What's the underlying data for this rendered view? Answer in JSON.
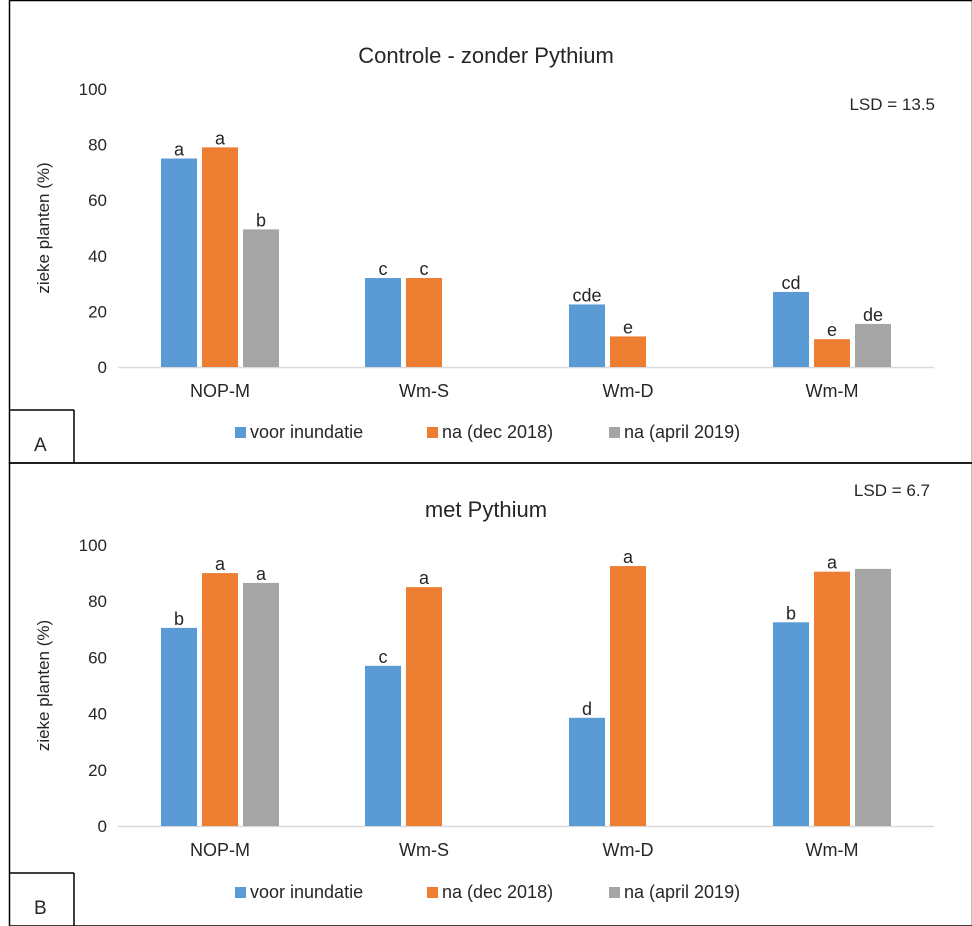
{
  "chart_data": [
    {
      "type": "bar",
      "panel": "A",
      "title": "Controle - zonder Pythium",
      "ylabel": "zieke planten (%)",
      "ylim": [
        0,
        100
      ],
      "yticks": [
        0,
        20,
        40,
        60,
        80,
        100
      ],
      "grid": false,
      "annotation": "LSD = 13.5",
      "legend_position": "bottom",
      "categories": [
        "NOP-M",
        "Wm-S",
        "Wm-D",
        "Wm-M"
      ],
      "series": [
        {
          "name": "voor inundatie",
          "color": "#5B9BD5",
          "values": [
            75,
            32,
            22.5,
            27
          ],
          "letters": [
            "a",
            "c",
            "cde",
            "cd"
          ]
        },
        {
          "name": "na (dec 2018)",
          "color": "#ED7D31",
          "values": [
            79,
            32,
            11,
            10
          ],
          "letters": [
            "a",
            "c",
            "e",
            "e"
          ]
        },
        {
          "name": "na (april 2019)",
          "color": "#A5A5A5",
          "values": [
            49.5,
            null,
            null,
            15.5
          ],
          "letters": [
            "b",
            "",
            "",
            "de"
          ]
        }
      ]
    },
    {
      "type": "bar",
      "panel": "B",
      "title": "met Pythium",
      "ylabel": "zieke planten (%)",
      "ylim": [
        0,
        100
      ],
      "yticks": [
        0,
        20,
        40,
        60,
        80,
        100
      ],
      "grid": false,
      "annotation": "LSD =  6.7",
      "legend_position": "bottom",
      "categories": [
        "NOP-M",
        "Wm-S",
        "Wm-D",
        "Wm-M"
      ],
      "series": [
        {
          "name": "voor inundatie",
          "color": "#5B9BD5",
          "values": [
            70.5,
            57,
            38.5,
            72.5
          ],
          "letters": [
            "b",
            "c",
            "d",
            "b"
          ]
        },
        {
          "name": "na (dec 2018)",
          "color": "#ED7D31",
          "values": [
            90,
            85,
            92.5,
            90.5
          ],
          "letters": [
            "a",
            "a",
            "a",
            "a"
          ]
        },
        {
          "name": "na (april 2019)",
          "color": "#A5A5A5",
          "values": [
            86.5,
            null,
            null,
            91.5
          ],
          "letters": [
            "a",
            "",
            "",
            ""
          ]
        }
      ]
    }
  ]
}
